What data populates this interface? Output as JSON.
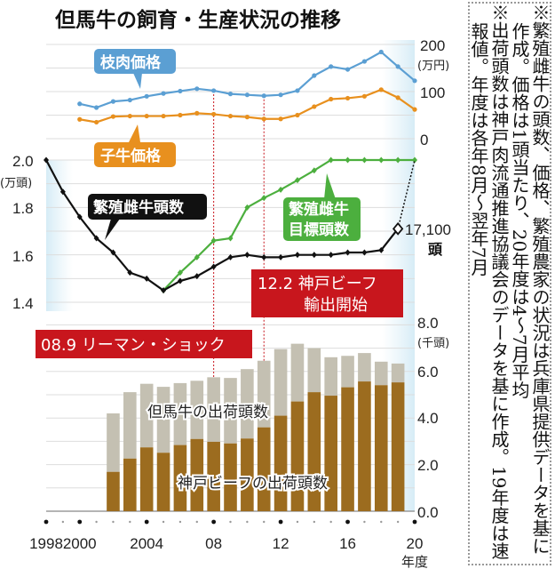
{
  "title": "但馬牛の飼育・生産状況の推移",
  "notes": [
    "※繁殖雌牛の頭数、価格、繁殖農家の状況は兵庫県提供データを基に作成。価格は1頭当たり、20年度は4～7月平均",
    "※出荷頭数は神戸肉流通推進協議会のデータを基に作成。19年度は速報値。年度は各年8月～翌年7月"
  ],
  "colors": {
    "carcass": "#5b9fd3",
    "calf": "#e8901e",
    "breeding": "#111111",
    "target": "#4caf3e",
    "kobe": "#9c6c1f",
    "tajima": "#c4c0b2",
    "event": "#c8161d"
  },
  "chart_data": [
    {
      "type": "line",
      "ylabel": "(万円)",
      "ylim": [
        0,
        200
      ],
      "yticks": [
        "200",
        "100",
        "0"
      ],
      "grid": true,
      "x": [
        2000,
        2001,
        2002,
        2003,
        2004,
        2005,
        2006,
        2007,
        2008,
        2009,
        2010,
        2011,
        2012,
        2013,
        2014,
        2015,
        2016,
        2017,
        2018,
        2019,
        2020
      ],
      "series": [
        {
          "name": "枝肉価格",
          "values": [
            74,
            66,
            79,
            82,
            90,
            96,
            101,
            106,
            102,
            95,
            93,
            91,
            93,
            102,
            134,
            153,
            147,
            164,
            184,
            153,
            123
          ]
        },
        {
          "name": "子牛価格",
          "values": [
            41,
            35,
            47,
            48,
            48,
            48,
            50,
            54,
            52,
            48,
            46,
            42,
            42,
            50,
            68,
            84,
            86,
            90,
            104,
            87,
            62
          ]
        }
      ]
    },
    {
      "type": "line",
      "ylabel": "(万頭)",
      "ylim": [
        1.4,
        2.0
      ],
      "yticks": [
        "2.0",
        "1.8",
        "1.6",
        "1.4"
      ],
      "grid": true,
      "series": [
        {
          "name": "繁殖雌牛頭数",
          "x": [
            1998,
            1999,
            2000,
            2001,
            2002,
            2003,
            2004,
            2005,
            2006,
            2007,
            2008,
            2009,
            2010,
            2011,
            2012,
            2013,
            2014,
            2015,
            2016,
            2017,
            2018,
            2019
          ],
          "values": [
            2.0,
            1.866,
            1.76,
            1.67,
            1.61,
            1.525,
            1.5,
            1.45,
            1.49,
            1.51,
            1.55,
            1.59,
            1.6,
            1.59,
            1.59,
            1.6,
            1.6,
            1.6,
            1.61,
            1.61,
            1.62,
            1.71
          ]
        },
        {
          "name": "繁殖雌牛目標頭数",
          "x": [
            2005,
            2006,
            2007,
            2008,
            2009,
            2010,
            2011,
            2012,
            2013,
            2014,
            2015,
            2016,
            2017,
            2018,
            2019,
            2020
          ],
          "values": [
            1.45,
            1.525,
            1.59,
            1.66,
            1.67,
            1.8,
            1.84,
            1.875,
            1.915,
            1.956,
            2.0,
            2.0,
            2.0,
            2.0,
            2.0,
            2.0
          ]
        }
      ],
      "annotation_last": "17,100",
      "annotation_last_unit": "頭"
    },
    {
      "type": "bar",
      "ylabel": "(千頭)",
      "ylim": [
        0,
        8
      ],
      "yticks": [
        "8.0",
        "6.0",
        "4.0",
        "2.0",
        "0.0"
      ],
      "grid": true,
      "x": [
        2002,
        2003,
        2004,
        2005,
        2006,
        2007,
        2008,
        2009,
        2010,
        2011,
        2012,
        2013,
        2014,
        2015,
        2016,
        2017,
        2018,
        2019
      ],
      "series": [
        {
          "name": "但馬牛の出荷頭数",
          "values": [
            4.2,
            5.11,
            5.47,
            5.34,
            5.5,
            5.6,
            5.75,
            5.72,
            6.1,
            6.46,
            6.96,
            7.19,
            7.0,
            6.61,
            6.67,
            6.79,
            6.42,
            6.34
          ]
        },
        {
          "name": "神戸ビーフの出荷頭数",
          "values": [
            1.69,
            2.26,
            2.74,
            2.51,
            2.84,
            3.1,
            2.98,
            2.91,
            3.12,
            3.6,
            4.1,
            4.71,
            5.11,
            4.96,
            5.32,
            5.57,
            5.41,
            5.53
          ]
        }
      ]
    }
  ],
  "xaxis": {
    "range": [
      1998,
      2020
    ],
    "ticks": [
      {
        "year": 1998,
        "label": "1998"
      },
      {
        "year": 2000,
        "label": "2000"
      },
      {
        "year": 2004,
        "label": "2004"
      },
      {
        "year": 2008,
        "label": "08"
      },
      {
        "year": 2012,
        "label": "12"
      },
      {
        "year": 2016,
        "label": "16"
      },
      {
        "year": 2020,
        "label": "20"
      }
    ],
    "label": "年度"
  },
  "events": [
    {
      "year": 2008,
      "label": "08.9 リーマン・ショック"
    },
    {
      "year": 2011,
      "label_line1": "12.2 神戸ビーフ",
      "label_line2": "輸出開始"
    }
  ]
}
